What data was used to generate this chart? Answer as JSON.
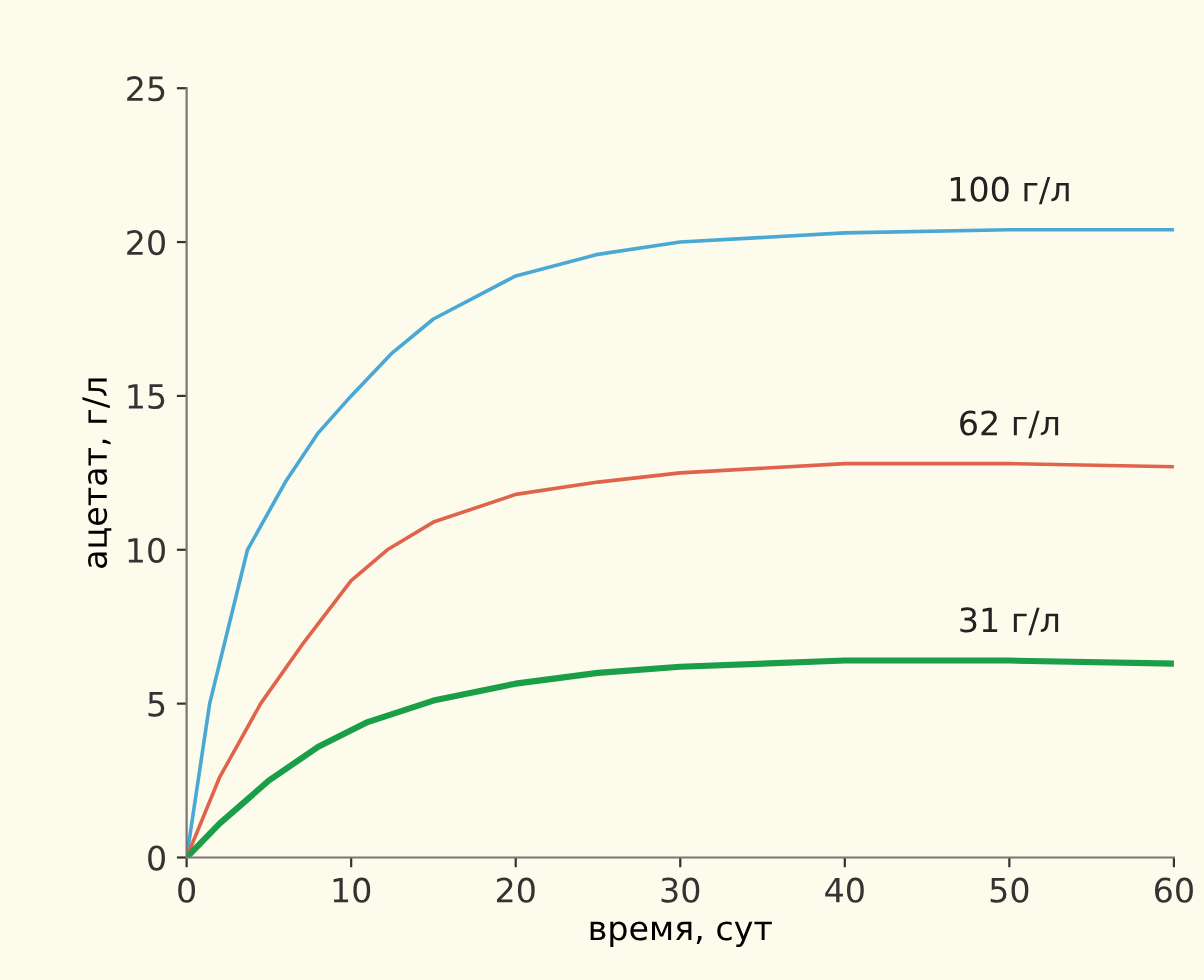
{
  "chart_data": {
    "type": "line",
    "xlabel": "время, сут",
    "ylabel": "ацетат, г/л",
    "xlim": [
      0,
      60
    ],
    "ylim": [
      0,
      25
    ],
    "xticks": [
      0,
      10,
      20,
      30,
      40,
      50,
      60
    ],
    "yticks": [
      0,
      5,
      10,
      15,
      20,
      25
    ],
    "grid": false,
    "legend": false,
    "marker": "none",
    "line_style": "solid",
    "series": [
      {
        "name": "100 г/л",
        "color": "#4aa8d4",
        "x": [
          0,
          1.4,
          3.7,
          6,
          8,
          10,
          12.5,
          15,
          20,
          25,
          30,
          40,
          50,
          60
        ],
        "values": [
          0,
          5,
          10,
          12.2,
          13.8,
          15,
          16.4,
          17.5,
          18.9,
          19.6,
          20,
          20.3,
          20.4,
          20.4
        ]
      },
      {
        "name": "62 г/л",
        "color": "#e0644c",
        "x": [
          0,
          2,
          4.5,
          7,
          10,
          12.2,
          15,
          20,
          25,
          30,
          40,
          50,
          60
        ],
        "values": [
          0,
          2.6,
          5,
          6.9,
          9,
          10,
          10.9,
          11.8,
          12.2,
          12.5,
          12.8,
          12.8,
          12.7
        ]
      },
      {
        "name": "31 г/л",
        "color": "#1a9e48",
        "x": [
          0,
          2,
          5,
          8,
          11,
          15,
          20,
          25,
          30,
          40,
          50,
          60
        ],
        "values": [
          0,
          1.1,
          2.5,
          3.6,
          4.4,
          5.1,
          5.65,
          6,
          6.2,
          6.4,
          6.4,
          6.3
        ]
      }
    ]
  }
}
